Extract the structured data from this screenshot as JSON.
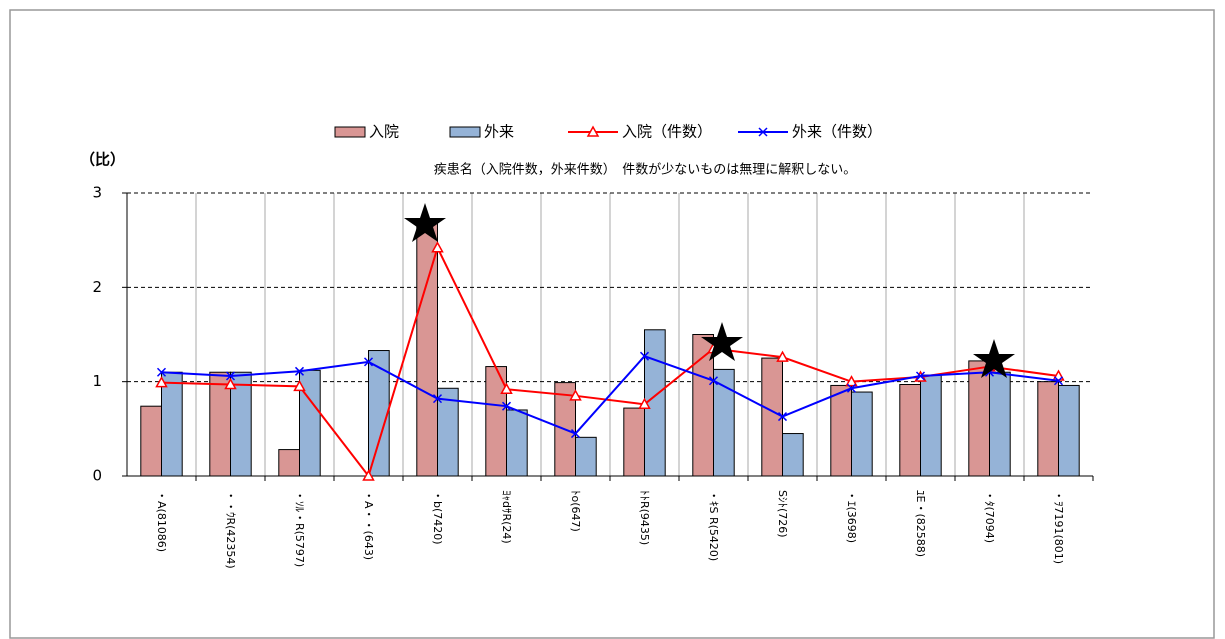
{
  "chart_data": {
    "type": "bar",
    "subtitle": "疾患名（入院件数，外来件数）　件数が少ないものは無理に解釈しない。",
    "y_label": "（比）",
    "categories": [
      "・A(81086)",
      "・・ｳR(42354)",
      "・ｿﾙ・R(5797)",
      "・A・・(643)",
      "・b(7420)",
      "ﾖｬdｻR(24)",
      "ﾄo(647)",
      "ﾄﾄR(9435)",
      "・ｷS R(5420)",
      "Sｼﾄ(726)",
      "・ｴ(3698)",
      "ﾕE・(82588)",
      "・ﾀ(7094)",
      "・ｦ7191(801)"
    ],
    "series": [
      {
        "name": "入院",
        "kind": "bar",
        "color": "#d99694",
        "values": [
          0.74,
          1.1,
          0.28,
          0,
          2.68,
          1.16,
          0.99,
          0.72,
          1.5,
          1.25,
          0.96,
          0.97,
          1.22,
          1.0
        ]
      },
      {
        "name": "外来",
        "kind": "bar",
        "color": "#95b3d7",
        "values": [
          1.1,
          1.1,
          1.12,
          1.33,
          0.93,
          0.7,
          0.41,
          1.55,
          1.13,
          0.45,
          0.89,
          1.07,
          1.1,
          0.96
        ]
      },
      {
        "name": "入院（件数）",
        "kind": "line",
        "marker": "triangle",
        "color": "#ff0000",
        "values": [
          0.99,
          0.97,
          0.95,
          0,
          2.42,
          0.92,
          0.85,
          0.76,
          1.35,
          1.26,
          1.0,
          1.05,
          1.16,
          1.06
        ]
      },
      {
        "name": "外来（件数）",
        "kind": "line",
        "marker": "x",
        "color": "#0000ff",
        "values": [
          1.1,
          1.06,
          1.11,
          1.21,
          0.82,
          0.74,
          0.45,
          1.27,
          1.01,
          0.63,
          0.93,
          1.06,
          1.1,
          1.01
        ]
      }
    ],
    "ylim": [
      0,
      3
    ],
    "yticks": [
      0,
      1,
      2,
      3
    ],
    "grid": true
  }
}
